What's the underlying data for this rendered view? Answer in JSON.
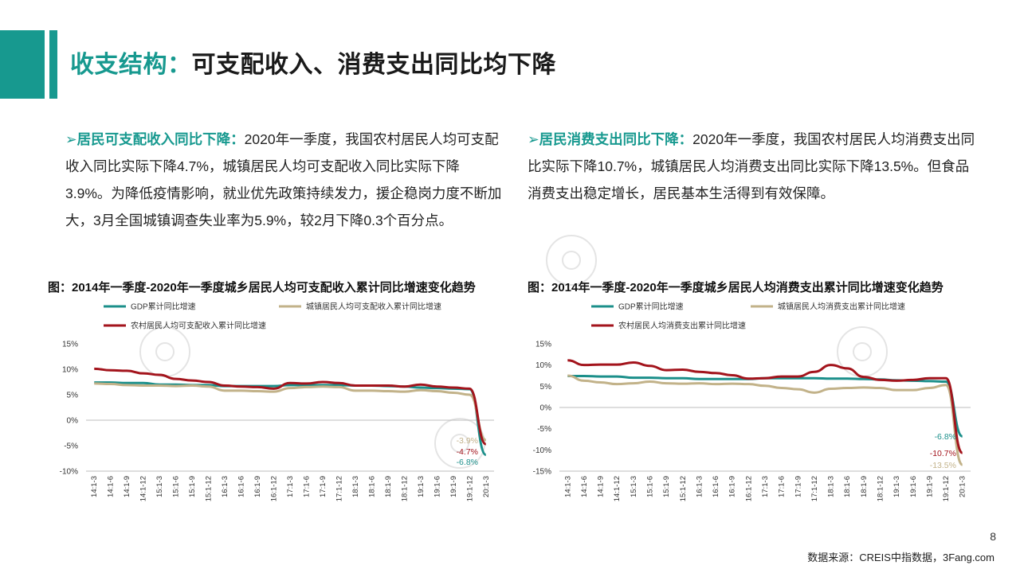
{
  "header": {
    "title_accent": "收支结构：",
    "title_rest": "可支配收入、消费支出同比均下降"
  },
  "left_text": {
    "lead": "居民可支配收入同比下降：",
    "body": "2020年一季度，我国农村居民人均可支配收入同比实际下降4.7%，城镇居民人均可支配收入同比实际下降3.9%。为降低疫情影响，就业优先政策持续发力，援企稳岗力度不断加大，3月全国城镇调查失业率为5.9%，较2月下降0.3个百分点。"
  },
  "right_text": {
    "lead": "居民消费支出同比下降：",
    "body": "2020年一季度，我国农村居民人均消费支出同比实际下降10.7%，城镇居民人均消费支出同比实际下降13.5%。但食品消费支出稳定增长，居民基本生活得到有效保障。"
  },
  "footer": {
    "page_number": "8",
    "source": "数据来源：CREIS中指数据，3Fang.com"
  },
  "colors": {
    "accent": "#17998f",
    "gdp": "#1b8f8a",
    "urban": "#c2b289",
    "rural": "#a3141c"
  },
  "chart_data": [
    {
      "type": "line",
      "title": "图：2014年一季度-2020年一季度城乡居民人均可支配收入累计同比增速变化趋势",
      "xlabel": "",
      "ylabel": "",
      "ylim": [
        -10,
        15
      ],
      "yticks": [
        "15%",
        "10%",
        "5%",
        "0%",
        "-5%",
        "-10%"
      ],
      "ytick_values": [
        15,
        10,
        5,
        0,
        -5,
        -10
      ],
      "categories": [
        "14:1-3",
        "14:1-6",
        "14:1-9",
        "14:1-12",
        "15:1-3",
        "15:1-6",
        "15:1-9",
        "15:1-12",
        "16:1-3",
        "16:1-6",
        "16:1-9",
        "16:1-12",
        "17:1-3",
        "17:1-6",
        "17:1-9",
        "17:1-12",
        "18:1-3",
        "18:1-6",
        "18:1-9",
        "18:1-12",
        "19:1-3",
        "19:1-6",
        "19:1-9",
        "19:1-12",
        "20:1-3"
      ],
      "legend": "top",
      "series": [
        {
          "name": "GDP累计同比增速",
          "color": "#1b8f8a",
          "values": [
            7.4,
            7.4,
            7.3,
            7.3,
            7.0,
            7.0,
            6.9,
            6.9,
            6.7,
            6.7,
            6.7,
            6.7,
            6.9,
            6.9,
            6.9,
            6.9,
            6.8,
            6.8,
            6.7,
            6.6,
            6.4,
            6.3,
            6.2,
            6.1,
            -6.8
          ]
        },
        {
          "name": "城镇居民人均可支配收入累计同比增速",
          "color": "#c2b289",
          "values": [
            7.2,
            7.1,
            6.9,
            6.8,
            6.8,
            6.7,
            6.8,
            6.6,
            5.8,
            5.8,
            5.7,
            5.6,
            6.3,
            6.5,
            6.6,
            6.5,
            5.8,
            5.8,
            5.7,
            5.6,
            5.9,
            5.7,
            5.4,
            5.0,
            -3.9
          ]
        },
        {
          "name": "农村居民人均可支配收入累计同比增速",
          "color": "#a3141c",
          "values": [
            10.1,
            9.8,
            9.7,
            9.2,
            8.9,
            8.1,
            7.8,
            7.5,
            6.8,
            6.6,
            6.5,
            6.2,
            7.3,
            7.2,
            7.5,
            7.3,
            6.8,
            6.8,
            6.8,
            6.6,
            7.0,
            6.6,
            6.4,
            6.2,
            -4.7
          ]
        }
      ],
      "labels": [
        {
          "text": "-3.9%",
          "series": 1
        },
        {
          "text": "-4.7%",
          "series": 2
        },
        {
          "text": "-6.8%",
          "series": 0
        }
      ]
    },
    {
      "type": "line",
      "title": "图：2014年一季度-2020年一季度城乡居民人均消费支出累计同比增速变化趋势",
      "xlabel": "",
      "ylabel": "",
      "ylim": [
        -15,
        15
      ],
      "yticks": [
        "15%",
        "10%",
        "5%",
        "0%",
        "-5%",
        "-10%",
        "-15%"
      ],
      "ytick_values": [
        15,
        10,
        5,
        0,
        -5,
        -10,
        -15
      ],
      "categories": [
        "14:1-3",
        "14:1-6",
        "14:1-9",
        "14:1-12",
        "15:1-3",
        "15:1-6",
        "15:1-9",
        "15:1-12",
        "16:1-3",
        "16:1-6",
        "16:1-9",
        "16:1-12",
        "17:1-3",
        "17:1-6",
        "17:1-9",
        "17:1-12",
        "18:1-3",
        "18:1-6",
        "18:1-9",
        "18:1-12",
        "19:1-3",
        "19:1-6",
        "19:1-9",
        "19:1-12",
        "20:1-3"
      ],
      "legend": "top",
      "series": [
        {
          "name": "GDP累计同比增速",
          "color": "#1b8f8a",
          "values": [
            7.4,
            7.4,
            7.3,
            7.3,
            7.0,
            7.0,
            6.9,
            6.9,
            6.7,
            6.7,
            6.7,
            6.7,
            6.9,
            6.9,
            6.9,
            6.9,
            6.8,
            6.8,
            6.7,
            6.6,
            6.4,
            6.3,
            6.2,
            6.1,
            -6.8
          ]
        },
        {
          "name": "城镇居民人均消费支出累计同比增速",
          "color": "#c2b289",
          "values": [
            7.5,
            6.3,
            5.9,
            5.5,
            5.7,
            6.1,
            5.7,
            5.6,
            5.7,
            5.5,
            5.6,
            5.5,
            5.1,
            4.6,
            4.3,
            3.5,
            4.4,
            4.6,
            4.7,
            4.6,
            4.1,
            4.1,
            4.6,
            5.3,
            -13.5
          ]
        },
        {
          "name": "农村居民人均消费支出累计同比增速",
          "color": "#a3141c",
          "values": [
            11.1,
            10.0,
            10.1,
            10.1,
            10.6,
            9.8,
            8.8,
            8.9,
            8.4,
            8.1,
            7.6,
            6.8,
            6.9,
            7.3,
            7.3,
            8.4,
            10.0,
            9.2,
            7.2,
            6.5,
            6.3,
            6.5,
            6.9,
            6.9,
            -10.7
          ]
        }
      ],
      "labels": [
        {
          "text": "-6.8%",
          "series": 0
        },
        {
          "text": "-10.7%",
          "series": 2
        },
        {
          "text": "-13.5%",
          "series": 1
        }
      ]
    }
  ]
}
